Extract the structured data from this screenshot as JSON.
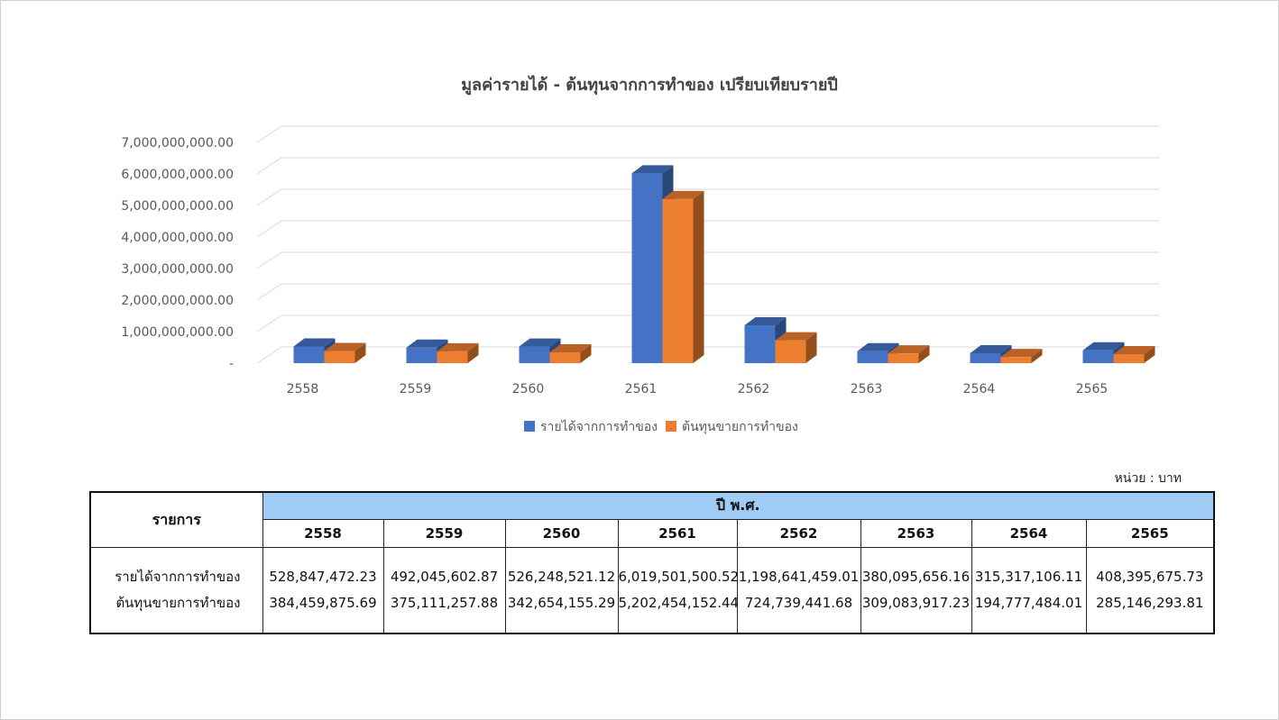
{
  "chart_data": {
    "type": "bar",
    "title": "มูลค่ารายได้ - ต้นทุนจากการทำของ เปรียบเทียบรายปี",
    "categories": [
      "2558",
      "2559",
      "2560",
      "2561",
      "2562",
      "2563",
      "2564",
      "2565"
    ],
    "series": [
      {
        "name": "รายได้จากการทำของ",
        "color": "#4472c4",
        "values": [
          528847472.23,
          492045602.87,
          526248521.12,
          6019501500.52,
          1198641459.01,
          380095656.16,
          315317106.11,
          408395675.73
        ]
      },
      {
        "name": "ต้นทุนขายการทำของ",
        "color": "#ed7d31",
        "values": [
          384459875.69,
          375111257.88,
          342654155.29,
          5202454152.44,
          724739441.68,
          309083917.23,
          194777484.01,
          285146293.81
        ]
      }
    ],
    "yticks": [
      "-",
      "1,000,000,000.00",
      "2,000,000,000.00",
      "3,000,000,000.00",
      "4,000,000,000.00",
      "5,000,000,000.00",
      "6,000,000,000.00",
      "7,000,000,000.00"
    ],
    "ylim": [
      0,
      7000000000
    ],
    "grid": true,
    "legend": "bottom"
  },
  "unit_note": "หน่วย : บาท",
  "table": {
    "items_header": "รายการ",
    "year_group_header": "ปี พ.ศ.",
    "years": [
      "2558",
      "2559",
      "2560",
      "2561",
      "2562",
      "2563",
      "2564",
      "2565"
    ],
    "row_labels": [
      "รายได้จากการทำของ",
      "ต้นทุนขายการทำของ"
    ],
    "revenue": [
      "528,847,472.23",
      "492,045,602.87",
      "526,248,521.12",
      "6,019,501,500.52",
      "1,198,641,459.01",
      "380,095,656.16",
      "315,317,106.11",
      "408,395,675.73"
    ],
    "cost": [
      "384,459,875.69",
      "375,111,257.88",
      "342,654,155.29",
      "5,202,454,152.44",
      "724,739,441.68",
      "309,083,917.23",
      "194,777,484.01",
      "285,146,293.81"
    ]
  }
}
